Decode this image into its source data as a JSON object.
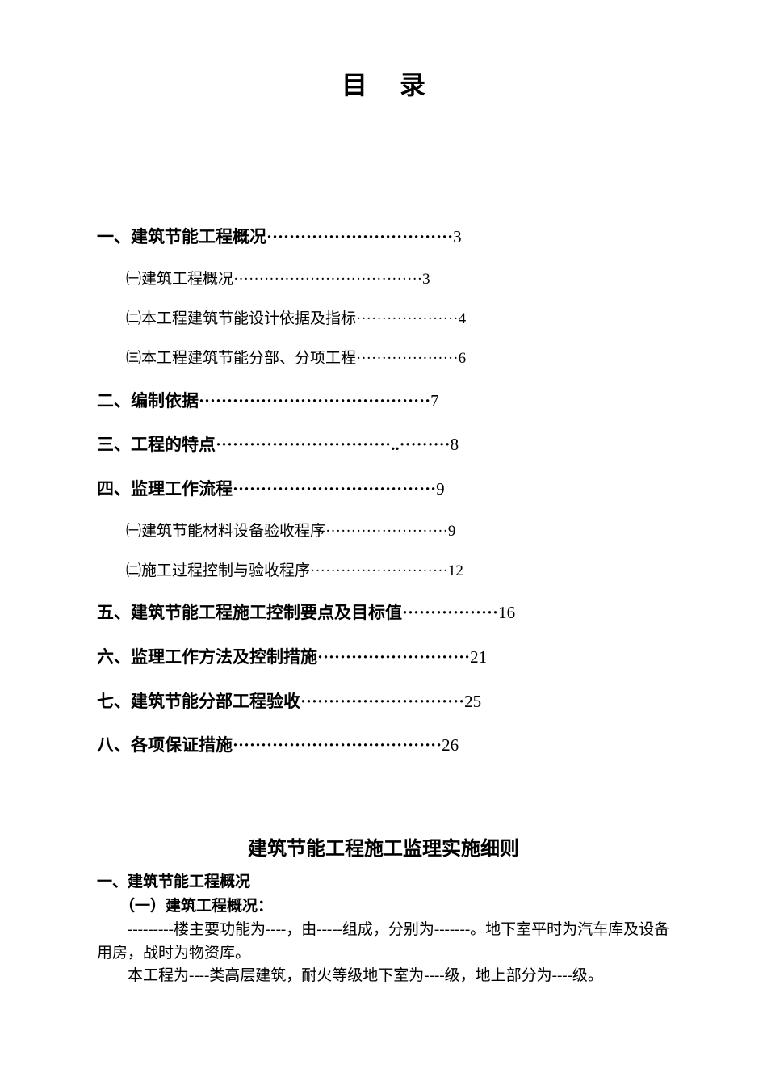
{
  "title": "目录",
  "toc": [
    {
      "level": "main",
      "label": "一、建筑节能工程概况",
      "dots": "·································",
      "page": "3"
    },
    {
      "level": "sub",
      "label": "㈠建筑工程概况",
      "dots": "·····································",
      "page": "3"
    },
    {
      "level": "sub",
      "label": "㈡本工程建筑节能设计依据及指标",
      "dots": "····················",
      "page": "4"
    },
    {
      "level": "sub",
      "label": "㈢本工程建筑节能分部、分项工程",
      "dots": "····················",
      "page": "6"
    },
    {
      "level": "main",
      "label": "二、编制依据",
      "dots": "·········································",
      "page": "7"
    },
    {
      "level": "main",
      "label": "三、工程的特点",
      "dots": "·······························..·········",
      "page": "8"
    },
    {
      "level": "main",
      "label": "四、监理工作流程",
      "dots": "····································",
      "page": "9"
    },
    {
      "level": "sub",
      "label": "㈠建筑节能材料设备验收程序",
      "dots": "························",
      "page": "9"
    },
    {
      "level": "sub",
      "label": "㈡施工过程控制与验收程序",
      "dots": "···························",
      "page": "12"
    },
    {
      "level": "main",
      "label": "五、建筑节能工程施工控制要点及目标值",
      "dots": "·················",
      "page": "16"
    },
    {
      "level": "main",
      "label": "六、监理工作方法及控制措施",
      "dots": "···························",
      "page": "21"
    },
    {
      "level": "main",
      "label": "七、建筑节能分部工程验收",
      "dots": "·····························",
      "page": "25"
    },
    {
      "level": "main",
      "label": "八、各项保证措施",
      "dots": "·····································",
      "page": "26"
    }
  ],
  "docTitle": "建筑节能工程施工监理实施细则",
  "section1": "一、建筑节能工程概况",
  "section1_1": "（一）建筑工程概况：",
  "para1": "---------楼主要功能为----，由-----组成，分别为-------。地下室平时为汽车库及设备用房，战时为物资库。",
  "para2": "本工程为----类高层建筑，耐火等级地下室为----级，地上部分为----级。",
  "colors": {
    "background": "#ffffff",
    "text": "#000000"
  },
  "typography": {
    "title_fontsize": 32,
    "main_fontsize": 21,
    "sub_fontsize": 19,
    "doc_title_fontsize": 24,
    "body_fontsize": 19,
    "font_family": "SimSun"
  }
}
